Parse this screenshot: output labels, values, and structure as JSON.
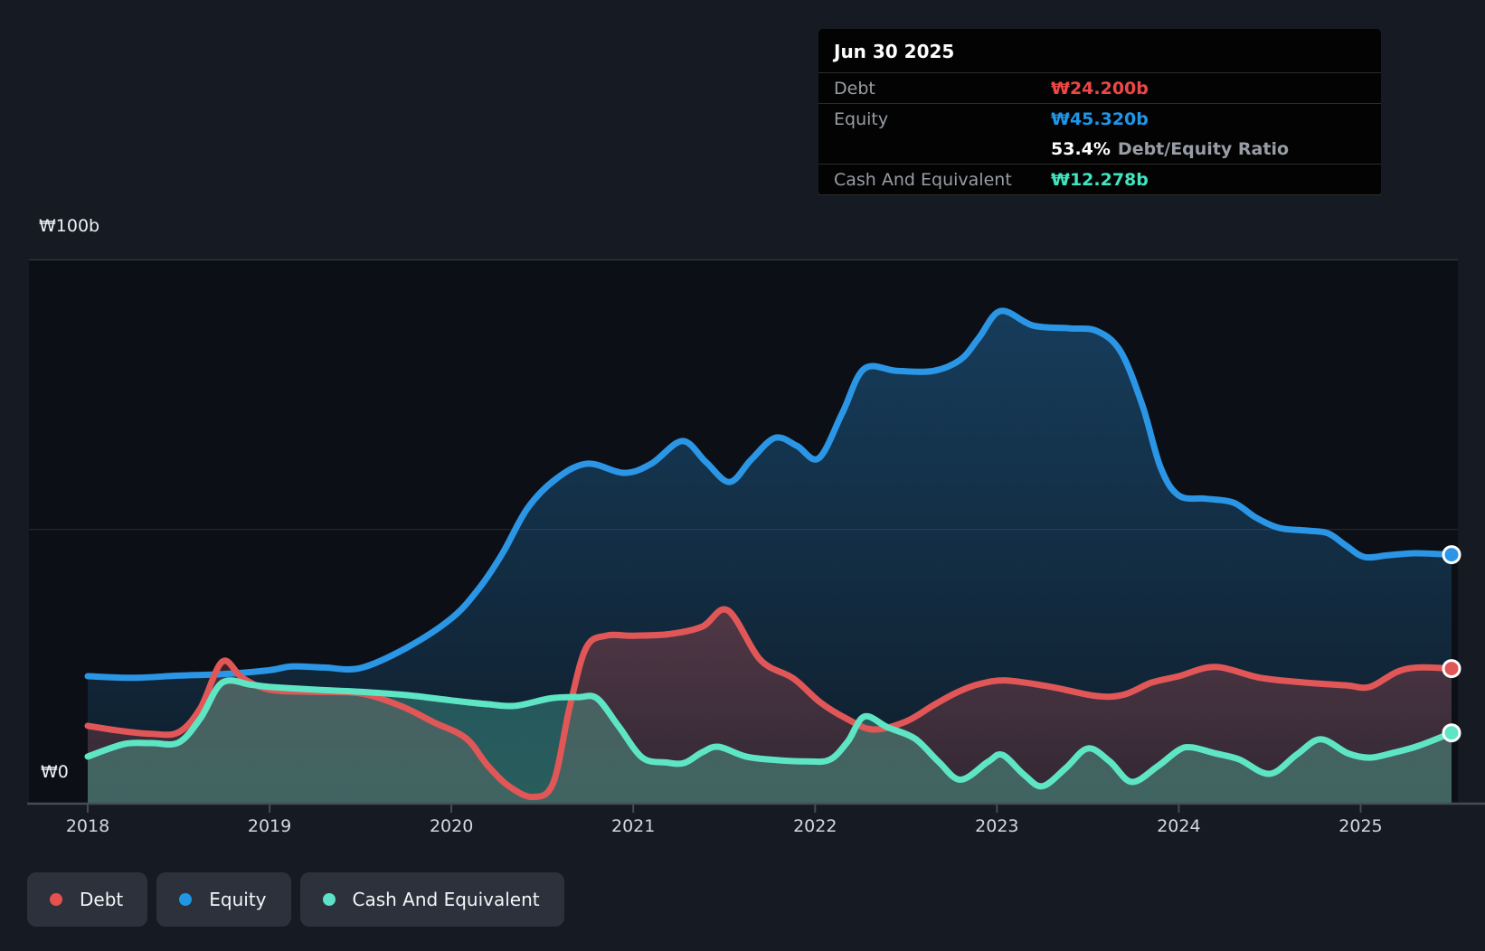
{
  "tooltip": {
    "date": "Jun 30 2025",
    "debt_label": "Debt",
    "debt_value": "₩24.200b",
    "equity_label": "Equity",
    "equity_value": "₩45.320b",
    "ratio_value": "53.4%",
    "ratio_label": "Debt/Equity Ratio",
    "cash_label": "Cash And Equivalent",
    "cash_value": "₩12.278b"
  },
  "axis": {
    "y_max_label": "₩100b",
    "y_zero_label": "₩0",
    "x_labels": [
      "2018",
      "2019",
      "2020",
      "2021",
      "2022",
      "2023",
      "2024",
      "2025"
    ]
  },
  "legend": {
    "items": [
      {
        "id": "debt",
        "label": "Debt",
        "color": "#e4514f"
      },
      {
        "id": "equity",
        "label": "Equity",
        "color": "#2196e3"
      },
      {
        "id": "cash",
        "label": "Cash And Equivalent",
        "color": "#5fe0c8"
      }
    ]
  },
  "chart_data": {
    "type": "area",
    "x_domain": [
      2018,
      2025.5
    ],
    "y_domain": [
      0,
      100
    ],
    "y_unit": "₩ billions",
    "y_gridlines": [
      50,
      100
    ],
    "x_ticks": [
      2018,
      2019,
      2020,
      2021,
      2022,
      2023,
      2024,
      2025
    ],
    "legend_position": "bottom-left",
    "series": [
      {
        "name": "Equity",
        "color": "#2b96e6",
        "points": [
          [
            2018.0,
            22.8
          ],
          [
            2018.25,
            22.5
          ],
          [
            2018.5,
            22.9
          ],
          [
            2018.75,
            23.2
          ],
          [
            2019.0,
            23.9
          ],
          [
            2019.12,
            24.6
          ],
          [
            2019.3,
            24.4
          ],
          [
            2019.5,
            24.3
          ],
          [
            2019.75,
            28.0
          ],
          [
            2020.0,
            33.5
          ],
          [
            2020.15,
            39.0
          ],
          [
            2020.28,
            45.5
          ],
          [
            2020.42,
            54.0
          ],
          [
            2020.58,
            59.5
          ],
          [
            2020.75,
            62.2
          ],
          [
            2020.95,
            60.5
          ],
          [
            2021.1,
            62.2
          ],
          [
            2021.27,
            66.4
          ],
          [
            2021.4,
            62.5
          ],
          [
            2021.53,
            58.8
          ],
          [
            2021.65,
            63.0
          ],
          [
            2021.78,
            67.0
          ],
          [
            2021.9,
            65.5
          ],
          [
            2022.02,
            63.2
          ],
          [
            2022.15,
            71.6
          ],
          [
            2022.27,
            79.8
          ],
          [
            2022.45,
            79.4
          ],
          [
            2022.65,
            79.4
          ],
          [
            2022.8,
            81.5
          ],
          [
            2022.9,
            85.5
          ],
          [
            2023.02,
            90.5
          ],
          [
            2023.2,
            87.8
          ],
          [
            2023.4,
            87.3
          ],
          [
            2023.55,
            86.8
          ],
          [
            2023.68,
            83.0
          ],
          [
            2023.8,
            73.0
          ],
          [
            2023.9,
            61.5
          ],
          [
            2024.0,
            56.3
          ],
          [
            2024.15,
            55.7
          ],
          [
            2024.3,
            55.0
          ],
          [
            2024.42,
            52.3
          ],
          [
            2024.55,
            50.3
          ],
          [
            2024.7,
            49.8
          ],
          [
            2024.82,
            49.3
          ],
          [
            2024.92,
            47.0
          ],
          [
            2025.02,
            44.9
          ],
          [
            2025.15,
            45.2
          ],
          [
            2025.3,
            45.6
          ],
          [
            2025.5,
            45.32
          ]
        ]
      },
      {
        "name": "Debt",
        "color": "#e15757",
        "points": [
          [
            2018.0,
            13.6
          ],
          [
            2018.17,
            12.7
          ],
          [
            2018.35,
            12.1
          ],
          [
            2018.5,
            12.4
          ],
          [
            2018.62,
            16.9
          ],
          [
            2018.74,
            25.5
          ],
          [
            2018.85,
            22.5
          ],
          [
            2019.0,
            20.3
          ],
          [
            2019.25,
            19.9
          ],
          [
            2019.5,
            19.6
          ],
          [
            2019.72,
            17.3
          ],
          [
            2019.9,
            14.3
          ],
          [
            2020.08,
            11.3
          ],
          [
            2020.2,
            6.2
          ],
          [
            2020.32,
            2.3
          ],
          [
            2020.45,
            0.4
          ],
          [
            2020.56,
            3.0
          ],
          [
            2020.65,
            17.0
          ],
          [
            2020.74,
            28.0
          ],
          [
            2020.85,
            30.3
          ],
          [
            2021.0,
            30.3
          ],
          [
            2021.2,
            30.6
          ],
          [
            2021.38,
            32.0
          ],
          [
            2021.52,
            35.0
          ],
          [
            2021.7,
            25.8
          ],
          [
            2021.88,
            22.4
          ],
          [
            2022.03,
            17.9
          ],
          [
            2022.18,
            14.8
          ],
          [
            2022.32,
            12.9
          ],
          [
            2022.5,
            14.4
          ],
          [
            2022.65,
            17.4
          ],
          [
            2022.78,
            19.8
          ],
          [
            2022.9,
            21.3
          ],
          [
            2023.05,
            22.0
          ],
          [
            2023.3,
            20.8
          ],
          [
            2023.55,
            19.1
          ],
          [
            2023.7,
            19.4
          ],
          [
            2023.85,
            21.6
          ],
          [
            2024.0,
            22.8
          ],
          [
            2024.2,
            24.5
          ],
          [
            2024.45,
            22.5
          ],
          [
            2024.7,
            21.6
          ],
          [
            2024.92,
            21.1
          ],
          [
            2025.05,
            20.8
          ],
          [
            2025.2,
            23.6
          ],
          [
            2025.32,
            24.4
          ],
          [
            2025.5,
            24.2
          ]
        ]
      },
      {
        "name": "Cash And Equivalent",
        "color": "#5ee6c4",
        "points": [
          [
            2018.0,
            7.9
          ],
          [
            2018.2,
            10.2
          ],
          [
            2018.35,
            10.4
          ],
          [
            2018.5,
            10.5
          ],
          [
            2018.62,
            15.0
          ],
          [
            2018.74,
            21.6
          ],
          [
            2018.9,
            21.2
          ],
          [
            2019.0,
            20.8
          ],
          [
            2019.25,
            20.3
          ],
          [
            2019.5,
            19.9
          ],
          [
            2019.75,
            19.3
          ],
          [
            2020.0,
            18.3
          ],
          [
            2020.2,
            17.6
          ],
          [
            2020.35,
            17.3
          ],
          [
            2020.55,
            18.7
          ],
          [
            2020.7,
            18.9
          ],
          [
            2020.8,
            18.7
          ],
          [
            2020.92,
            13.5
          ],
          [
            2021.05,
            7.7
          ],
          [
            2021.18,
            6.8
          ],
          [
            2021.28,
            6.7
          ],
          [
            2021.38,
            8.7
          ],
          [
            2021.47,
            9.7
          ],
          [
            2021.62,
            7.9
          ],
          [
            2021.8,
            7.2
          ],
          [
            2021.95,
            7.0
          ],
          [
            2022.08,
            7.3
          ],
          [
            2022.18,
            10.7
          ],
          [
            2022.27,
            15.3
          ],
          [
            2022.4,
            13.3
          ],
          [
            2022.55,
            11.2
          ],
          [
            2022.68,
            6.9
          ],
          [
            2022.8,
            3.6
          ],
          [
            2022.95,
            6.9
          ],
          [
            2023.03,
            8.2
          ],
          [
            2023.15,
            4.5
          ],
          [
            2023.25,
            2.4
          ],
          [
            2023.38,
            5.8
          ],
          [
            2023.5,
            9.4
          ],
          [
            2023.62,
            7.0
          ],
          [
            2023.74,
            3.2
          ],
          [
            2023.88,
            6.0
          ],
          [
            2024.0,
            9.1
          ],
          [
            2024.07,
            9.6
          ],
          [
            2024.2,
            8.5
          ],
          [
            2024.33,
            7.4
          ],
          [
            2024.5,
            4.7
          ],
          [
            2024.65,
            8.3
          ],
          [
            2024.78,
            11.1
          ],
          [
            2024.93,
            8.5
          ],
          [
            2025.05,
            7.7
          ],
          [
            2025.18,
            8.6
          ],
          [
            2025.32,
            9.9
          ],
          [
            2025.5,
            12.28
          ]
        ]
      }
    ]
  }
}
